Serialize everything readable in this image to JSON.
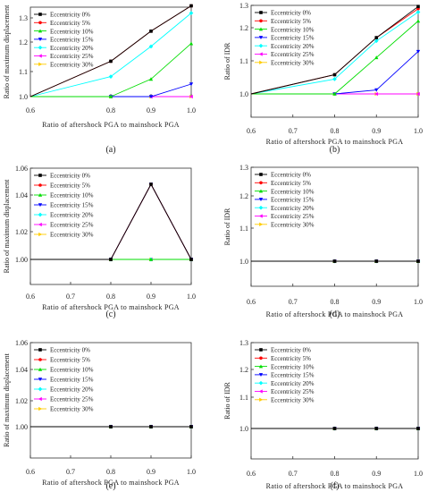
{
  "legend_labels": [
    "Eccentricity 0%",
    "Eccentricity 5%",
    "Eccentricity 10%",
    "Eccentricity 15%",
    "Eccentricity 20%",
    "Eccentricity 25%",
    "Eccentricity 30%"
  ],
  "colors": [
    "#000000",
    "#ff0000",
    "#00dd00",
    "#0000ff",
    "#00ffff",
    "#ff00ff",
    "#ffcc00"
  ],
  "markers": [
    "square",
    "circle",
    "triangle-up",
    "triangle-down",
    "diamond",
    "triangle-left",
    "triangle-right"
  ],
  "chart_data": [
    {
      "panel_label": "(a)",
      "type": "line",
      "xlabel": "Ratio of aftershock PGA to mainshock PGA",
      "ylabel": "Ratio of maximum displacement",
      "xlim": [
        0.6,
        1.0
      ],
      "ylim": [
        0.95,
        1.4
      ],
      "xticks": [
        "0.6",
        "0.8",
        "0.9",
        "1.0"
      ],
      "yticks": [
        "1.0",
        "1.1",
        "1.2",
        "1.3"
      ],
      "legend_position": "top-left",
      "x": [
        0.6,
        0.8,
        0.9,
        1.0
      ],
      "series": [
        {
          "name": "Eccentricity 0%",
          "values": [
            1.0,
            1.135,
            1.245,
            1.35
          ]
        },
        {
          "name": "Eccentricity 5%",
          "values": [
            1.0,
            1.135,
            1.245,
            1.35
          ]
        },
        {
          "name": "Eccentricity 10%",
          "values": [
            1.0,
            1.0,
            1.07,
            1.195
          ]
        },
        {
          "name": "Eccentricity 15%",
          "values": [
            1.0,
            1.0,
            1.0,
            1.05
          ]
        },
        {
          "name": "Eccentricity 20%",
          "values": [
            1.0,
            1.08,
            1.185,
            1.32
          ]
        },
        {
          "name": "Eccentricity 25%",
          "values": [
            1.0,
            1.0,
            1.0,
            1.0
          ]
        },
        {
          "name": "Eccentricity 30%",
          "values": [
            1.0,
            1.0,
            1.0,
            1.0
          ]
        }
      ]
    },
    {
      "panel_label": "(b)",
      "type": "line",
      "xlabel": "Ratio of aftershock PGA to mainshock PGA",
      "ylabel": "Ratio of IDR",
      "xlim": [
        0.6,
        1.0
      ],
      "ylim": [
        0.9,
        1.3
      ],
      "xticks": [
        "0.6",
        "0.7",
        "0.8",
        "0.9",
        "1.0"
      ],
      "yticks": [
        "1.0",
        "1.1",
        "1.2",
        "1.3"
      ],
      "legend_position": "top-left",
      "x": [
        0.6,
        0.8,
        0.9,
        1.0
      ],
      "series": [
        {
          "name": "Eccentricity 0%",
          "values": [
            1.0,
            1.058,
            1.17,
            1.295
          ]
        },
        {
          "name": "Eccentricity 5%",
          "values": [
            1.0,
            1.058,
            1.17,
            1.285
          ]
        },
        {
          "name": "Eccentricity 10%",
          "values": [
            1.0,
            1.0,
            1.11,
            1.23
          ]
        },
        {
          "name": "Eccentricity 15%",
          "values": [
            1.0,
            1.0,
            1.012,
            1.128
          ]
        },
        {
          "name": "Eccentricity 20%",
          "values": [
            1.0,
            1.045,
            1.16,
            1.27
          ]
        },
        {
          "name": "Eccentricity 25%",
          "values": [
            1.0,
            1.0,
            1.0,
            1.0
          ]
        },
        {
          "name": "Eccentricity 30%",
          "values": [
            1.0,
            1.0,
            1.0,
            1.0
          ]
        }
      ]
    },
    {
      "panel_label": "(c)",
      "type": "line",
      "xlabel": "Ratio of aftershock PGA to mainshock PGA",
      "ylabel": "Ratio of maximum displacement",
      "xlim": [
        0.6,
        1.0
      ],
      "ylim": [
        0.99,
        1.06
      ],
      "xticks": [
        "0.6",
        "0.7",
        "0.8",
        "0.9",
        "1.0"
      ],
      "yticks": [
        "1.00",
        "1.02",
        "1.04",
        "1.06"
      ],
      "legend_position": "top-left",
      "x": [
        0.6,
        0.8,
        0.9,
        1.0
      ],
      "series": [
        {
          "name": "Eccentricity 0%",
          "values": [
            1.0,
            1.0,
            1.048,
            1.0
          ]
        },
        {
          "name": "Eccentricity 5%",
          "values": [
            1.0,
            1.0,
            1.048,
            1.0
          ]
        },
        {
          "name": "Eccentricity 10%",
          "values": [
            1.0,
            1.0,
            1.0,
            1.0
          ]
        },
        {
          "name": "Eccentricity 15%",
          "values": [
            1.0,
            1.0,
            1.048,
            1.0
          ]
        },
        {
          "name": "Eccentricity 20%",
          "values": [
            1.0,
            1.0,
            1.0,
            1.0
          ]
        },
        {
          "name": "Eccentricity 25%",
          "values": [
            1.0,
            1.0,
            1.0,
            1.0
          ]
        },
        {
          "name": "Eccentricity 30%",
          "values": [
            1.0,
            1.0,
            1.0,
            1.0
          ]
        }
      ]
    },
    {
      "panel_label": "(d)",
      "type": "line",
      "xlabel": "Ratio of aftershock PGA to mainshock PGA",
      "ylabel": "Ratio of IDR",
      "xlim": [
        0.6,
        1.0
      ],
      "ylim": [
        0.9,
        1.3
      ],
      "xticks": [
        "0.6",
        "0.7",
        "0.8",
        "0.9",
        "1.0"
      ],
      "yticks": [
        "1.0",
        "1.1",
        "1.2",
        "1.3"
      ],
      "legend_position": "top-left",
      "x": [
        0.6,
        0.8,
        0.9,
        1.0
      ],
      "series": [
        {
          "name": "Eccentricity 0%",
          "values": [
            1.0,
            1.0,
            1.0,
            1.0
          ]
        },
        {
          "name": "Eccentricity 5%",
          "values": [
            1.0,
            1.0,
            1.0,
            1.0
          ]
        },
        {
          "name": "Eccentricity 10%",
          "values": [
            1.0,
            1.0,
            1.0,
            1.0
          ]
        },
        {
          "name": "Eccentricity 15%",
          "values": [
            1.0,
            1.0,
            1.0,
            1.0
          ]
        },
        {
          "name": "Eccentricity 20%",
          "values": [
            1.0,
            1.0,
            1.0,
            1.0
          ]
        },
        {
          "name": "Eccentricity 25%",
          "values": [
            1.0,
            1.0,
            1.0,
            1.0
          ]
        },
        {
          "name": "Eccentricity 30%",
          "values": [
            1.0,
            1.0,
            1.0,
            1.0
          ]
        }
      ]
    },
    {
      "panel_label": "(e)",
      "type": "line",
      "xlabel": "Ratio of aftershock PGA to mainshock PGA",
      "ylabel": "Ratio of maximum displacement",
      "xlim": [
        0.6,
        1.0
      ],
      "ylim": [
        0.99,
        1.06
      ],
      "xticks": [
        "0.6",
        "0.7",
        "0.8",
        "0.9",
        "1.0"
      ],
      "yticks": [
        "1.00",
        "1.02",
        "1.04",
        "1.06"
      ],
      "legend_position": "top-left",
      "x": [
        0.6,
        0.8,
        0.9,
        1.0
      ],
      "series": [
        {
          "name": "Eccentricity 0%",
          "values": [
            1.0,
            1.0,
            1.0,
            1.0
          ]
        },
        {
          "name": "Eccentricity 5%",
          "values": [
            1.0,
            1.0,
            1.0,
            1.0
          ]
        },
        {
          "name": "Eccentricity 10%",
          "values": [
            1.0,
            1.0,
            1.0,
            1.0
          ]
        },
        {
          "name": "Eccentricity 15%",
          "values": [
            1.0,
            1.0,
            1.0,
            1.0
          ]
        },
        {
          "name": "Eccentricity 20%",
          "values": [
            1.0,
            1.0,
            1.0,
            1.0
          ]
        },
        {
          "name": "Eccentricity 25%",
          "values": [
            1.0,
            1.0,
            1.0,
            1.0
          ]
        },
        {
          "name": "Eccentricity 30%",
          "values": [
            1.0,
            1.0,
            1.0,
            1.0
          ]
        }
      ]
    },
    {
      "panel_label": "(f)",
      "type": "line",
      "xlabel": "Ratio of aftershock PGA to mainshock PGA",
      "ylabel": "Ratio of IDR",
      "xlim": [
        0.6,
        1.0
      ],
      "ylim": [
        0.9,
        1.3
      ],
      "xticks": [
        "0.6",
        "0.7",
        "0.8",
        "0.9",
        "1.0"
      ],
      "yticks": [
        "1.0",
        "1.1",
        "1.2",
        "1.3"
      ],
      "legend_position": "top-left",
      "x": [
        0.6,
        0.8,
        0.9,
        1.0
      ],
      "series": [
        {
          "name": "Eccentricity 0%",
          "values": [
            1.0,
            1.0,
            1.0,
            1.0
          ]
        },
        {
          "name": "Eccentricity 5%",
          "values": [
            1.0,
            1.0,
            1.0,
            1.0
          ]
        },
        {
          "name": "Eccentricity 10%",
          "values": [
            1.0,
            1.0,
            1.0,
            1.0
          ]
        },
        {
          "name": "Eccentricity 15%",
          "values": [
            1.0,
            1.0,
            1.0,
            1.0
          ]
        },
        {
          "name": "Eccentricity 20%",
          "values": [
            1.0,
            1.0,
            1.0,
            1.0
          ]
        },
        {
          "name": "Eccentricity 25%",
          "values": [
            1.0,
            1.0,
            1.0,
            1.0
          ]
        },
        {
          "name": "Eccentricity 30%",
          "values": [
            1.0,
            1.0,
            1.0,
            1.0
          ]
        }
      ]
    }
  ]
}
